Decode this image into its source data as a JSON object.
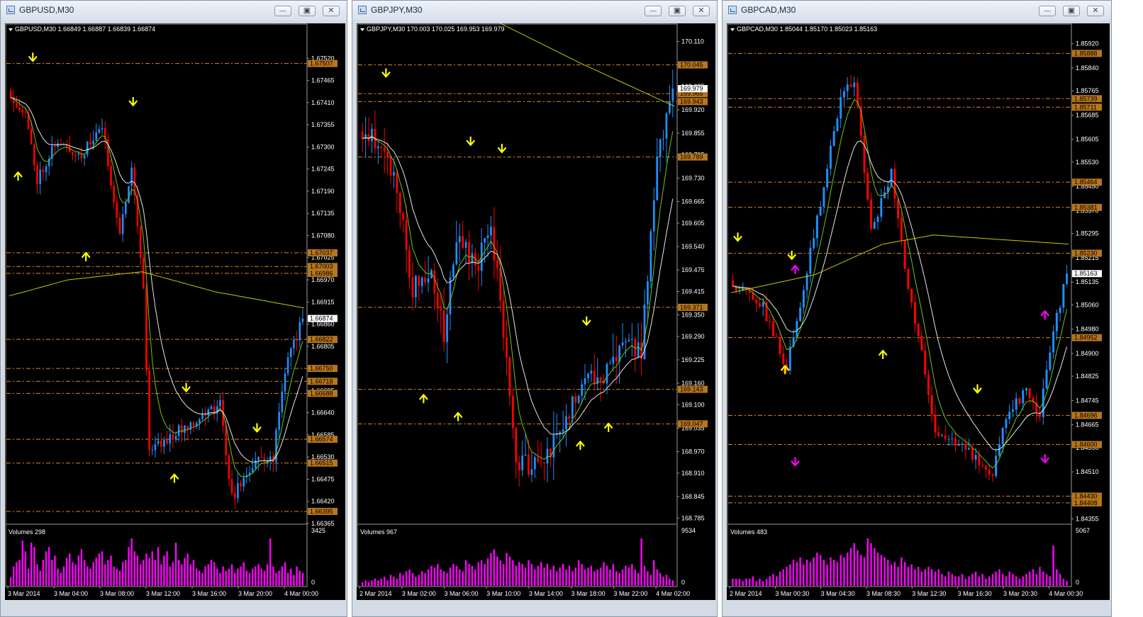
{
  "colors": {
    "bull": "#1e90ff",
    "bear": "#ff0000",
    "ma_fast": "#6fc21a",
    "ma_slow": "#e6e6e6",
    "ma_long": "#c8c800",
    "level": "#d9891f",
    "level_label_bg": "#b8761a",
    "volume": "#ff00ff",
    "arrow": "#ffff00",
    "arrow_alt": "#ff00ff"
  },
  "windows": [
    {
      "title": "GBPUSD,M30",
      "chart_data": {
        "type": "candlestick",
        "header": "GBPUSD,M30  1.66849 1.66887 1.66839 1.66874",
        "ylim": [
          1.66365,
          1.67575
        ],
        "price_ticks": [
          "1.67520",
          "1.67465",
          "1.67410",
          "1.67355",
          "1.67300",
          "1.67245",
          "1.67190",
          "1.67135",
          "1.67080",
          "1.67025",
          "1.66970",
          "1.66915",
          "1.66860",
          "1.66805",
          "1.66750",
          "1.66695",
          "1.66640",
          "1.66585",
          "1.66530",
          "1.66475",
          "1.66420",
          "1.66365"
        ],
        "levels": [
          {
            "value": 1.67507,
            "label": "1.67507"
          },
          {
            "value": 1.67037,
            "label": "1.67037"
          },
          {
            "value": 1.67003,
            "label": "1.67003"
          },
          {
            "value": 1.66986,
            "label": "1.66986"
          },
          {
            "value": 1.66822,
            "label": "1.66822"
          },
          {
            "value": 1.6675,
            "label": "1.66750"
          },
          {
            "value": 1.66718,
            "label": "1.66718"
          },
          {
            "value": 1.66688,
            "label": "1.66688"
          },
          {
            "value": 1.66574,
            "label": "1.66574"
          },
          {
            "value": 1.66515,
            "label": "1.66515"
          },
          {
            "value": 1.66395,
            "label": "1.66395"
          }
        ],
        "current_price": "1.66874",
        "start": 1.6744,
        "end": 1.66874,
        "lo": 1.66395,
        "hi": 1.6752,
        "anchors": [
          [
            0,
            1.6744
          ],
          [
            0.06,
            1.6738
          ],
          [
            0.1,
            1.6722
          ],
          [
            0.16,
            1.6731
          ],
          [
            0.25,
            1.6728
          ],
          [
            0.32,
            1.6735
          ],
          [
            0.38,
            1.6708
          ],
          [
            0.42,
            1.6726
          ],
          [
            0.46,
            1.6695
          ],
          [
            0.48,
            1.6655
          ],
          [
            0.55,
            1.6658
          ],
          [
            0.63,
            1.6662
          ],
          [
            0.72,
            1.6666
          ],
          [
            0.76,
            1.6643
          ],
          [
            0.84,
            1.6652
          ],
          [
            0.9,
            1.6653
          ],
          [
            0.94,
            1.6675
          ],
          [
            1,
            1.66874
          ]
        ],
        "ma_long": [
          [
            0,
            1.6693
          ],
          [
            0.2,
            1.6697
          ],
          [
            0.45,
            1.6699
          ],
          [
            0.7,
            1.6694
          ],
          [
            1,
            1.669
          ]
        ],
        "n": 100,
        "seed": 11,
        "vol": 0.00028,
        "wick": 0.00012,
        "arrows_down": [
          [
            0.08,
            1.6752
          ],
          [
            0.42,
            1.6741
          ],
          [
            0.6,
            1.667
          ],
          [
            0.84,
            1.666
          ]
        ],
        "arrows_up": [
          [
            0.03,
            1.6723
          ],
          [
            0.26,
            1.6703
          ],
          [
            0.56,
            1.6648
          ]
        ],
        "volumes_label": "Volumes 298",
        "vol_max_label": "3425",
        "vol_zero_label": "0",
        "time_labels": [
          "3 Mar 2014",
          "3 Mar 04:00",
          "3 Mar 08:00",
          "3 Mar 12:00",
          "3 Mar 16:00",
          "3 Mar 20:00",
          "4 Mar 00:00"
        ],
        "volumes": [
          4,
          9,
          11,
          12,
          21,
          16,
          8,
          20,
          18,
          10,
          7,
          12,
          16,
          18,
          12,
          14,
          8,
          6,
          9,
          13,
          15,
          11,
          10,
          14,
          17,
          12,
          9,
          8,
          11,
          13,
          15,
          16,
          10,
          12,
          14,
          9,
          8,
          7,
          11,
          12,
          18,
          22,
          16,
          14,
          10,
          12,
          15,
          13,
          16,
          12,
          18,
          10,
          14,
          16,
          9,
          11,
          20,
          12,
          10,
          13,
          15,
          10,
          12,
          8,
          7,
          6,
          9,
          10,
          12,
          11,
          8,
          6,
          9,
          7,
          8,
          10,
          6,
          8,
          9,
          11,
          7,
          6,
          8,
          9,
          10,
          8,
          7,
          10,
          22,
          9,
          6,
          7,
          9,
          11,
          6,
          8,
          5,
          9,
          7,
          6
        ]
      }
    },
    {
      "title": "GBPJPY,M30",
      "chart_data": {
        "type": "candlestick",
        "header": "GBPJPY,M30  170.003 170.025 169.953 169.979",
        "ylim": [
          168.77,
          170.125
        ],
        "price_ticks": [
          "170.110",
          "170.045",
          "169.985",
          "169.920",
          "169.855",
          "169.795",
          "169.730",
          "169.665",
          "169.605",
          "169.540",
          "169.475",
          "169.415",
          "169.350",
          "169.290",
          "169.225",
          "169.160",
          "169.100",
          "169.035",
          "168.970",
          "168.910",
          "168.845",
          "168.785"
        ],
        "levels": [
          {
            "value": 170.045,
            "label": "170.045"
          },
          {
            "value": 169.965,
            "label": "169.965"
          },
          {
            "value": 169.943,
            "label": "169.943"
          },
          {
            "value": 169.789,
            "label": "169.789"
          },
          {
            "value": 169.371,
            "label": "169.371"
          },
          {
            "value": 169.143,
            "label": "169.143"
          },
          {
            "value": 169.047,
            "label": "169.047"
          }
        ],
        "current_price": "169.979",
        "start": 169.86,
        "end": 169.979,
        "lo": 168.84,
        "hi": 170.06,
        "anchors": [
          [
            0,
            169.86
          ],
          [
            0.07,
            169.83
          ],
          [
            0.12,
            169.7
          ],
          [
            0.17,
            169.42
          ],
          [
            0.22,
            169.48
          ],
          [
            0.27,
            169.3
          ],
          [
            0.31,
            169.55
          ],
          [
            0.38,
            169.5
          ],
          [
            0.42,
            169.6
          ],
          [
            0.45,
            169.38
          ],
          [
            0.5,
            168.95
          ],
          [
            0.57,
            168.92
          ],
          [
            0.65,
            169.03
          ],
          [
            0.72,
            169.2
          ],
          [
            0.76,
            169.17
          ],
          [
            0.8,
            169.19
          ],
          [
            0.85,
            169.28
          ],
          [
            0.9,
            169.25
          ],
          [
            0.95,
            169.78
          ],
          [
            1,
            169.979
          ]
        ],
        "ma_long": [
          [
            0,
            170.3
          ],
          [
            0.15,
            170.25
          ],
          [
            0.4,
            170.18
          ],
          [
            0.7,
            170.05
          ],
          [
            1,
            169.93
          ]
        ],
        "n": 100,
        "seed": 23,
        "vol": 0.06,
        "wick": 0.03,
        "arrows_down": [
          [
            0.08,
            170.02
          ],
          [
            0.35,
            169.83
          ],
          [
            0.45,
            169.81
          ],
          [
            0.72,
            169.33
          ]
        ],
        "arrows_up": [
          [
            0.2,
            169.12
          ],
          [
            0.31,
            169.07
          ],
          [
            0.7,
            168.99
          ],
          [
            0.79,
            169.04
          ]
        ],
        "volumes_label": "Volumes 967",
        "vol_max_label": "9534",
        "vol_zero_label": "0",
        "time_labels": [
          "2 Mar 2014",
          "3 Mar 02:00",
          "3 Mar 06:00",
          "3 Mar 10:00",
          "3 Mar 14:00",
          "3 Mar 18:00",
          "3 Mar 22:00",
          "4 Mar 02:00"
        ],
        "volumes": [
          2,
          3,
          2,
          3,
          4,
          3,
          4,
          5,
          3,
          6,
          5,
          4,
          7,
          6,
          8,
          9,
          7,
          5,
          6,
          8,
          7,
          9,
          11,
          10,
          12,
          9,
          8,
          7,
          10,
          12,
          11,
          9,
          8,
          14,
          12,
          11,
          9,
          13,
          14,
          12,
          15,
          18,
          20,
          16,
          14,
          12,
          18,
          16,
          14,
          11,
          13,
          12,
          10,
          14,
          12,
          9,
          11,
          13,
          10,
          12,
          9,
          11,
          8,
          10,
          12,
          9,
          11,
          8,
          10,
          14,
          12,
          9,
          10,
          11,
          8,
          9,
          10,
          13,
          11,
          9,
          12,
          8,
          7,
          9,
          11,
          10,
          12,
          9,
          7,
          26,
          11,
          8,
          6,
          14,
          9,
          7,
          5,
          6,
          4,
          3
        ]
      }
    },
    {
      "title": "GBPCAD,M30",
      "chart_data": {
        "type": "candlestick",
        "header": "GBPCAD,M30  1.85044 1.85170 1.85023 1.85163",
        "ylim": [
          1.8434,
          1.85945
        ],
        "price_ticks": [
          "1.85920",
          "1.85840",
          "1.85765",
          "1.85685",
          "1.85605",
          "1.85530",
          "1.85450",
          "1.85370",
          "1.85295",
          "1.85215",
          "1.85135",
          "1.85060",
          "1.84980",
          "1.84900",
          "1.84825",
          "1.84745",
          "1.84665",
          "1.84590",
          "1.84510",
          "1.84430",
          "1.84355"
        ],
        "levels": [
          {
            "value": 1.85888,
            "label": "1.85888"
          },
          {
            "value": 1.85739,
            "label": "1.85739"
          },
          {
            "value": 1.85711,
            "label": "1.85711"
          },
          {
            "value": 1.85464,
            "label": "1.85464"
          },
          {
            "value": 1.85381,
            "label": "1.85381"
          },
          {
            "value": 1.8523,
            "label": "1.85230"
          },
          {
            "value": 1.84952,
            "label": "1.84952"
          },
          {
            "value": 1.84696,
            "label": "1.84696"
          },
          {
            "value": 1.846,
            "label": "1.84600"
          },
          {
            "value": 1.8443,
            "label": "1.84430"
          },
          {
            "value": 1.84408,
            "label": "1.84408"
          }
        ],
        "current_price": "1.85163",
        "start": 1.8514,
        "end": 1.85163,
        "lo": 1.84408,
        "hi": 1.85888,
        "anchors": [
          [
            0,
            1.8514
          ],
          [
            0.06,
            1.8509
          ],
          [
            0.1,
            1.8505
          ],
          [
            0.17,
            1.8485
          ],
          [
            0.22,
            1.8512
          ],
          [
            0.28,
            1.8545
          ],
          [
            0.33,
            1.8575
          ],
          [
            0.37,
            1.858
          ],
          [
            0.42,
            1.853
          ],
          [
            0.48,
            1.855
          ],
          [
            0.53,
            1.851
          ],
          [
            0.57,
            1.849
          ],
          [
            0.61,
            1.8465
          ],
          [
            0.68,
            1.846
          ],
          [
            0.73,
            1.8455
          ],
          [
            0.78,
            1.845
          ],
          [
            0.82,
            1.847
          ],
          [
            0.88,
            1.8478
          ],
          [
            0.92,
            1.847
          ],
          [
            0.95,
            1.8492
          ],
          [
            1,
            1.85163
          ]
        ],
        "ma_long": [
          [
            0,
            1.851
          ],
          [
            0.25,
            1.8516
          ],
          [
            0.45,
            1.8526
          ],
          [
            0.6,
            1.8529
          ],
          [
            1,
            1.8526
          ]
        ],
        "n": 100,
        "seed": 37,
        "vol": 0.00038,
        "wick": 0.00015,
        "arrows_down": [
          [
            0.02,
            1.8528
          ],
          [
            0.18,
            1.8522
          ],
          [
            0.73,
            1.8478
          ]
        ],
        "arrows_up": [
          [
            0.16,
            1.8485
          ],
          [
            0.45,
            1.849
          ]
        ],
        "arrows_down_alt": [
          [
            0.19,
            1.8454
          ],
          [
            0.93,
            1.8455
          ]
        ],
        "arrows_up_alt": [
          [
            0.19,
            1.8518
          ],
          [
            0.93,
            1.8503
          ]
        ],
        "volumes_label": "Volumes 483",
        "vol_max_label": "5067",
        "vol_zero_label": "0",
        "time_labels": [
          "2 Mar 2014",
          "3 Mar 00:30",
          "3 Mar 04:30",
          "3 Mar 08:30",
          "3 Mar 12:30",
          "3 Mar 16:30",
          "3 Mar 20:30",
          "4 Mar 00:30"
        ],
        "volumes": [
          3,
          3,
          3,
          2,
          3,
          3,
          4,
          2,
          3,
          2,
          3,
          4,
          5,
          4,
          6,
          7,
          8,
          9,
          11,
          10,
          12,
          9,
          11,
          10,
          12,
          14,
          13,
          11,
          9,
          12,
          11,
          10,
          13,
          12,
          14,
          16,
          18,
          15,
          13,
          12,
          20,
          18,
          16,
          14,
          13,
          12,
          11,
          9,
          10,
          8,
          12,
          10,
          8,
          9,
          7,
          8,
          6,
          7,
          8,
          7,
          6,
          7,
          5,
          4,
          6,
          5,
          4,
          4,
          5,
          3,
          4,
          5,
          6,
          4,
          5,
          3,
          4,
          5,
          6,
          7,
          5,
          4,
          6,
          5,
          4,
          3,
          4,
          5,
          6,
          7,
          5,
          8,
          6,
          5,
          4,
          17,
          7,
          5,
          3,
          2
        ]
      }
    }
  ]
}
